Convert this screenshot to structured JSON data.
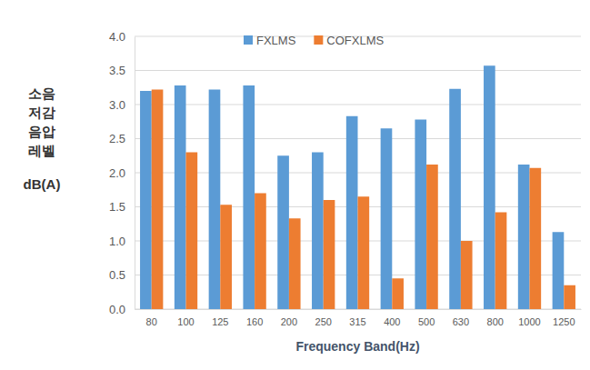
{
  "chart_data": {
    "type": "bar",
    "y_label": [
      "소음",
      "저감",
      "음압",
      "레벨",
      "dB(A)"
    ],
    "x_label": "Frequency Band(Hz)",
    "categories": [
      "80",
      "100",
      "125",
      "160",
      "200",
      "250",
      "315",
      "400",
      "500",
      "630",
      "800",
      "1000",
      "1250"
    ],
    "series": [
      {
        "name": "FXLMS",
        "color": "#5b9bd5",
        "values": [
          3.2,
          3.28,
          3.22,
          3.28,
          2.25,
          2.3,
          2.83,
          2.65,
          2.78,
          3.23,
          3.57,
          2.12,
          1.13
        ]
      },
      {
        "name": "COFXLMS",
        "color": "#ed7d31",
        "values": [
          3.22,
          2.3,
          1.53,
          1.7,
          1.33,
          1.6,
          1.65,
          0.45,
          2.12,
          1.0,
          1.42,
          2.07,
          0.35
        ]
      }
    ],
    "ylim": [
      0,
      4
    ],
    "yticks": [
      {
        "value": 0,
        "label": "0.0"
      },
      0.5,
      {
        "value": 1,
        "label": "1.0"
      },
      1.5,
      {
        "value": 2,
        "label": "2.0"
      },
      2.5,
      {
        "value": 3,
        "label": "3.0"
      },
      3.5,
      {
        "value": 4,
        "label": "4.0"
      }
    ],
    "grid": true,
    "legend": "top"
  }
}
